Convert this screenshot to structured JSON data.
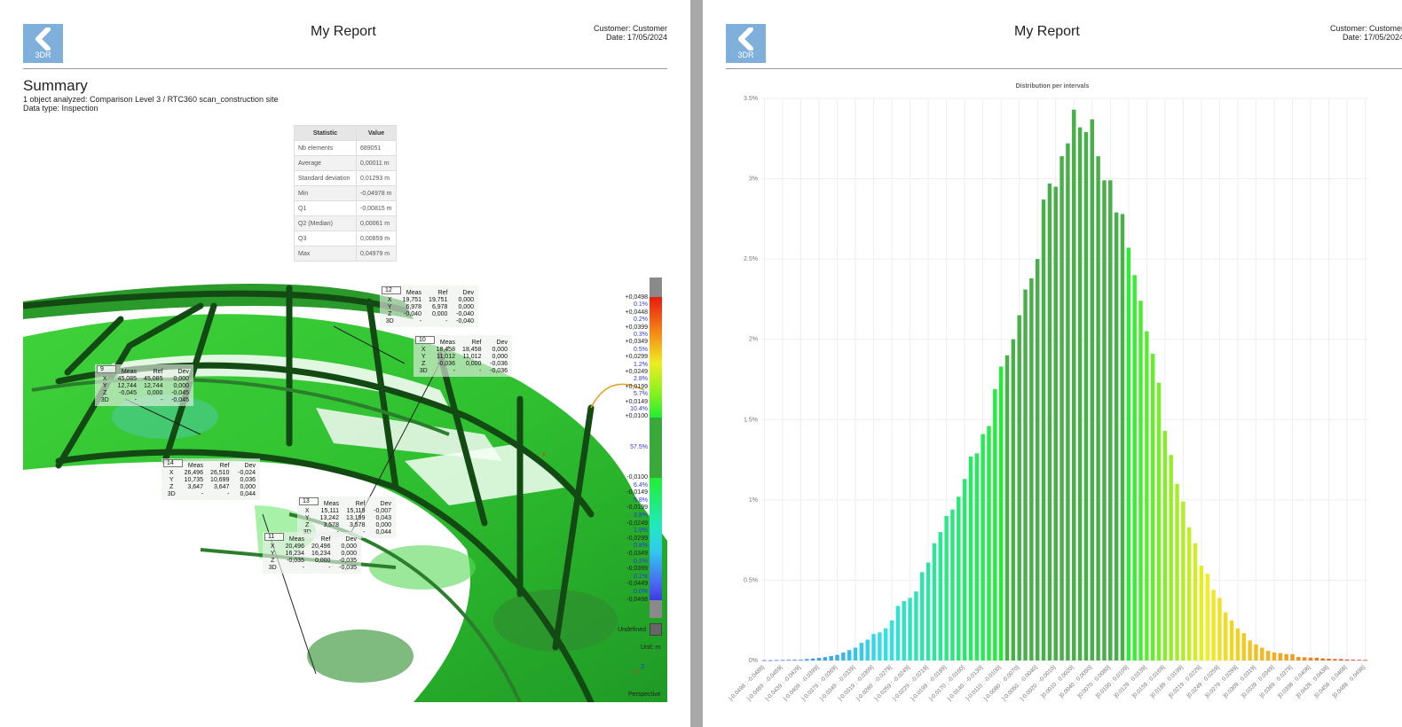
{
  "left_page": {
    "logo_text": "3DR",
    "title": "My Report",
    "customer": "Customer: Customer",
    "date": "Date: 17/05/2024",
    "summary_title": "Summary",
    "summary_line1": "1 object analyzed: Comparison Level 3 / RTC360 scan_construction site",
    "summary_line2": "Data type: Inspection",
    "stats_table": {
      "headers": [
        "Statistic",
        "Value"
      ],
      "rows": [
        [
          "Nb elements",
          "689051"
        ],
        [
          "Average",
          "0,00011 m"
        ],
        [
          "Standard deviation",
          "0,01293 m"
        ],
        [
          "Min",
          "-0,04978 m"
        ],
        [
          "Q1",
          "-0,00815 m"
        ],
        [
          "Q2 (Median)",
          "0,00061 m"
        ],
        [
          "Q3",
          "0,00859 m"
        ],
        [
          "Max",
          "0,04979 m"
        ]
      ]
    },
    "annotations": [
      {
        "id": "12",
        "cols": [
          "Meas",
          "Ref",
          "Dev"
        ],
        "rows": [
          [
            "X",
            "19,751",
            "19,751",
            "0,000"
          ],
          [
            "Y",
            "6,978",
            "6,978",
            "0,000"
          ],
          [
            "Z",
            "-0,040",
            "0,000",
            "-0,040"
          ],
          [
            "3D",
            "-",
            "-",
            "-0,040"
          ]
        ]
      },
      {
        "id": "10",
        "cols": [
          "Meas",
          "Ref",
          "Dev"
        ],
        "rows": [
          [
            "X",
            "18,458",
            "18,458",
            "0,000"
          ],
          [
            "Y",
            "11,012",
            "11,012",
            "0,000"
          ],
          [
            "Z",
            "-0,036",
            "0,000",
            "-0,036"
          ],
          [
            "3D",
            "-",
            "-",
            "-0,036"
          ]
        ]
      },
      {
        "id": "9",
        "cols": [
          "Meas",
          "Ref",
          "Dev"
        ],
        "rows": [
          [
            "X",
            "45,085",
            "45,085",
            "0,000"
          ],
          [
            "Y",
            "12,744",
            "12,744",
            "0,000"
          ],
          [
            "Z",
            "-0,045",
            "0,000",
            "-0,045"
          ],
          [
            "3D",
            "-",
            "-",
            "-0,045"
          ]
        ]
      },
      {
        "id": "14",
        "cols": [
          "Meas",
          "Ref",
          "Dev"
        ],
        "rows": [
          [
            "X",
            "26,496",
            "26,510",
            "-0,024"
          ],
          [
            "Y",
            "10,735",
            "10,699",
            "0,036"
          ],
          [
            "Z",
            "3,647",
            "3,647",
            "0,000"
          ],
          [
            "3D",
            "-",
            "-",
            "0,044"
          ]
        ]
      },
      {
        "id": "13",
        "cols": [
          "Meas",
          "Ref",
          "Dev"
        ],
        "rows": [
          [
            "X",
            "15,111",
            "15,119",
            "-0,007"
          ],
          [
            "Y",
            "13,242",
            "13,199",
            "0,043"
          ],
          [
            "Z",
            "3,578",
            "3,578",
            "0,000"
          ],
          [
            "3D",
            "-",
            "-",
            "0,044"
          ]
        ]
      },
      {
        "id": "11",
        "cols": [
          "Meas",
          "Ref",
          "Dev"
        ],
        "rows": [
          [
            "X",
            "20,496",
            "20,496",
            "0,000"
          ],
          [
            "Y",
            "16,234",
            "16,234",
            "0,000"
          ],
          [
            "Z",
            "-0,035",
            "0,000",
            "-0,035"
          ],
          [
            "3D",
            "-",
            "-",
            "-0,035"
          ]
        ]
      }
    ],
    "color_legend": {
      "labels": [
        "+0,0498",
        "0.1%",
        "+0,0448",
        "0.2%",
        "+0,0399",
        "0.3%",
        "+0,0349",
        "0.5%",
        "+0,0299",
        "1.2%",
        "+0,0249",
        "2.8%",
        "+0,0199",
        "5.7%",
        "+0,0149",
        "10.4%",
        "+0,0100",
        "57.5%",
        "-0,0100",
        "6.4%",
        "-0,0149",
        "5.8%",
        "-0,0199",
        "3.8%",
        "-0,0249",
        "1.9%",
        "-0,0299",
        "0.8%",
        "-0,0349",
        "0.2%",
        "-0,0399",
        "0.1%",
        "-0,0449",
        "0.0%",
        "-0,0498"
      ],
      "undefined_label": "Undefined",
      "unit_label": "Unit: m",
      "view_label": "Perspective",
      "axis_x": "X",
      "axis_z": "Z"
    }
  },
  "right_page": {
    "logo_text": "3DR",
    "title": "My Report",
    "customer": "Customer: Customer",
    "date": "Date: 17/05/2024"
  },
  "chart_data": {
    "type": "bar",
    "title": "Distribution per intervals",
    "xlabel": "",
    "ylabel": "",
    "ylim": [
      0,
      3.5
    ],
    "yticks": [
      "0%",
      "0.5%",
      "1%",
      "1.5%",
      "2%",
      "2.5%",
      "3%",
      "3.5%"
    ],
    "grid": true,
    "x_range": [
      -0.0498,
      0.0498
    ],
    "bin_count": 100,
    "tick_every_bins": 3,
    "tick_labels": [
      "]-0.0498 : -0.0488]",
      "]-0.0469 : -0.0459]",
      "]-0.0439 : -0.0429]",
      "]-0.0409 : -0.0399]",
      "]-0.0379 : -0.0369]",
      "]-0.0349 : -0.0339]",
      "]-0.0319 : -0.0309]",
      "]-0.0289 : -0.0279]",
      "]-0.0259 : -0.0249]",
      "]-0.0229 : -0.0219]",
      "]-0.0199 : -0.0189]",
      "]-0.0170 : -0.0160]",
      "]-0.0140 : -0.0130]",
      "]-0.0110 : -0.0100]",
      "]-0.0080 : -0.0070]",
      "]-0.0050 : -0.0040]",
      "]-0.0020 : -0.0010]",
      "]0.0010 : 0.0020]",
      "]0.0040 : 0.0050]",
      "]0.0070 : 0.0080]",
      "]0.0100 : 0.0109]",
      "]0.0129 : 0.0139]",
      "]0.0159 : 0.0169]",
      "]0.0189 : 0.0199]",
      "]0.0219 : 0.0229]",
      "]0.0249 : 0.0259]",
      "]0.0279 : 0.0289]",
      "]0.0309 : 0.0319]",
      "]0.0339 : 0.0349]",
      "]0.0369 : 0.0379]",
      "]0.0398 : 0.0408]",
      "]0.0428 : 0.0438]",
      "]0.0458 : 0.0468]",
      "]0.0488 : 0.0498]"
    ],
    "values": [
      0.002,
      0.002,
      0.003,
      0.003,
      0.004,
      0.005,
      0.005,
      0.009,
      0.012,
      0.016,
      0.021,
      0.028,
      0.035,
      0.05,
      0.065,
      0.08,
      0.11,
      0.13,
      0.165,
      0.175,
      0.2,
      0.25,
      0.34,
      0.37,
      0.39,
      0.43,
      0.55,
      0.61,
      0.73,
      0.8,
      0.9,
      0.94,
      1.02,
      1.13,
      1.27,
      1.29,
      1.41,
      1.46,
      1.69,
      1.83,
      1.9,
      2.0,
      2.15,
      2.31,
      2.38,
      2.5,
      2.87,
      2.97,
      2.95,
      3.14,
      3.22,
      3.43,
      3.32,
      3.29,
      3.37,
      3.14,
      2.99,
      2.99,
      2.79,
      2.78,
      2.57,
      2.4,
      2.24,
      2.05,
      1.91,
      1.73,
      1.43,
      1.28,
      1.1,
      0.99,
      0.83,
      0.73,
      0.59,
      0.54,
      0.44,
      0.39,
      0.3,
      0.25,
      0.2,
      0.17,
      0.125,
      0.1,
      0.08,
      0.06,
      0.05,
      0.046,
      0.04,
      0.039,
      0.022,
      0.02,
      0.018,
      0.017,
      0.013,
      0.011,
      0.009,
      0.009,
      0.006,
      0.005,
      0.004,
      0.003
    ],
    "colors": {
      "in_tolerance": "#48b048",
      "negative_scale": [
        "#22ee33",
        "#33e0e8",
        "#4a5cf0"
      ],
      "positive_scale": [
        "#22ee33",
        "#eeee22",
        "#f5a020",
        "#e02a20"
      ]
    }
  }
}
